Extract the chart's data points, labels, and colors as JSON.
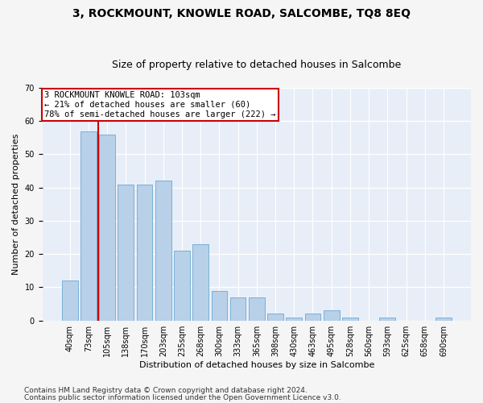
{
  "title": "3, ROCKMOUNT, KNOWLE ROAD, SALCOMBE, TQ8 8EQ",
  "subtitle": "Size of property relative to detached houses in Salcombe",
  "xlabel": "Distribution of detached houses by size in Salcombe",
  "ylabel": "Number of detached properties",
  "bar_labels": [
    "40sqm",
    "73sqm",
    "105sqm",
    "138sqm",
    "170sqm",
    "203sqm",
    "235sqm",
    "268sqm",
    "300sqm",
    "333sqm",
    "365sqm",
    "398sqm",
    "430sqm",
    "463sqm",
    "495sqm",
    "528sqm",
    "560sqm",
    "593sqm",
    "625sqm",
    "658sqm",
    "690sqm"
  ],
  "bar_values": [
    12,
    57,
    56,
    41,
    41,
    42,
    21,
    23,
    9,
    7,
    7,
    2,
    1,
    2,
    3,
    1,
    0,
    1,
    0,
    0,
    1
  ],
  "bar_color": "#b8d0e8",
  "bar_edge_color": "#6aaad4",
  "vline_x_index": 2,
  "vline_color": "#cc0000",
  "annotation_text": "3 ROCKMOUNT KNOWLE ROAD: 103sqm\n← 21% of detached houses are smaller (60)\n78% of semi-detached houses are larger (222) →",
  "annotation_box_facecolor": "#ffffff",
  "annotation_box_edgecolor": "#cc0000",
  "ylim": [
    0,
    70
  ],
  "yticks": [
    0,
    10,
    20,
    30,
    40,
    50,
    60,
    70
  ],
  "footer1": "Contains HM Land Registry data © Crown copyright and database right 2024.",
  "footer2": "Contains public sector information licensed under the Open Government Licence v3.0.",
  "fig_facecolor": "#f5f5f5",
  "ax_facecolor": "#e8eef7",
  "grid_color": "#ffffff",
  "title_fontsize": 10,
  "subtitle_fontsize": 9,
  "axis_label_fontsize": 8,
  "tick_fontsize": 7,
  "annotation_fontsize": 7.5,
  "footer_fontsize": 6.5
}
